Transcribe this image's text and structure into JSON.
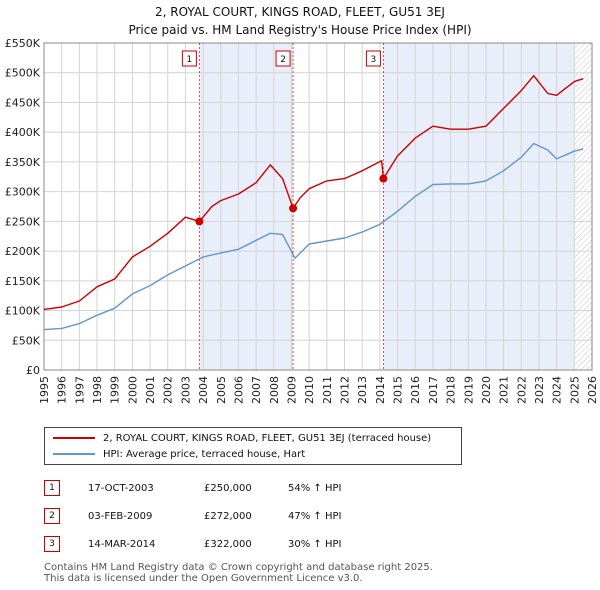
{
  "chart_data": {
    "type": "line",
    "title": "2, ROYAL COURT, KINGS ROAD, FLEET, GU51 3EJ",
    "subtitle": "Price paid vs. HM Land Registry's House Price Index (HPI)",
    "xlim": [
      1995,
      2026
    ],
    "ylim": [
      0,
      550000
    ],
    "y_ticks": [
      0,
      50000,
      100000,
      150000,
      200000,
      250000,
      300000,
      350000,
      400000,
      450000,
      500000,
      550000
    ],
    "y_tick_labels": [
      "£0",
      "£50K",
      "£100K",
      "£150K",
      "£200K",
      "£250K",
      "£300K",
      "£350K",
      "£400K",
      "£450K",
      "£500K",
      "£550K"
    ],
    "x_ticks": [
      "1995",
      "1996",
      "1997",
      "1998",
      "1999",
      "2000",
      "2001",
      "2002",
      "2003",
      "2004",
      "2005",
      "2006",
      "2007",
      "2008",
      "2009",
      "2010",
      "2011",
      "2012",
      "2013",
      "2014",
      "2015",
      "2016",
      "2017",
      "2018",
      "2019",
      "2020",
      "2021",
      "2022",
      "2023",
      "2024",
      "2025",
      "2026"
    ],
    "grid": true,
    "shaded_periods": [
      [
        2003.79,
        2009.09
      ],
      [
        2014.2,
        2025.0
      ]
    ],
    "forecast_start": 2025.0,
    "series": [
      {
        "name": "2, ROYAL COURT, KINGS ROAD, FLEET, GU51 3EJ (terraced house)",
        "color": "#cc0000",
        "x": [
          1995,
          1996,
          1997,
          1998,
          1999,
          2000,
          2001,
          2002,
          2003,
          2003.79,
          2004.5,
          2005,
          2006,
          2007,
          2007.8,
          2008.5,
          2009.09,
          2009.5,
          2010,
          2011,
          2012,
          2013,
          2014.1,
          2014.2,
          2015,
          2016,
          2017,
          2018,
          2019,
          2020,
          2021,
          2022,
          2022.7,
          2023.5,
          2024,
          2025,
          2025.5
        ],
        "values": [
          102000,
          106000,
          116000,
          140000,
          153000,
          190000,
          208000,
          230000,
          257000,
          250000,
          275000,
          285000,
          296000,
          315000,
          345000,
          322000,
          272000,
          290000,
          305000,
          318000,
          322000,
          335000,
          352000,
          322000,
          360000,
          390000,
          410000,
          405000,
          405000,
          410000,
          440000,
          470000,
          495000,
          465000,
          462000,
          485000,
          490000
        ]
      },
      {
        "name": "HPI: Average price, terraced house, Hart",
        "color": "#6495cd",
        "x": [
          1995,
          1996,
          1997,
          1998,
          1999,
          2000,
          2001,
          2002,
          2003,
          2004,
          2005,
          2006,
          2007,
          2007.8,
          2008.5,
          2009.2,
          2010,
          2011,
          2012,
          2013,
          2014,
          2015,
          2016,
          2017,
          2018,
          2019,
          2020,
          2021,
          2022,
          2022.7,
          2023.5,
          2024,
          2025,
          2025.5
        ],
        "values": [
          68000,
          70000,
          78000,
          92000,
          104000,
          128000,
          142000,
          160000,
          175000,
          190000,
          197000,
          203000,
          218000,
          230000,
          228000,
          188000,
          212000,
          217000,
          222000,
          232000,
          245000,
          267000,
          292000,
          312000,
          313000,
          313000,
          318000,
          335000,
          358000,
          381000,
          370000,
          355000,
          368000,
          372000
        ]
      }
    ],
    "sale_markers": [
      {
        "label": "1",
        "x": 2003.79,
        "value": 250000
      },
      {
        "label": "2",
        "x": 2009.09,
        "value": 272000
      },
      {
        "label": "3",
        "x": 2014.2,
        "value": 322000
      }
    ]
  },
  "legend": {
    "property_label": "2, ROYAL COURT, KINGS ROAD, FLEET, GU51 3EJ (terraced house)",
    "hpi_label": "HPI: Average price, terraced house, Hart"
  },
  "sales": [
    {
      "num": "1",
      "date": "17-OCT-2003",
      "price": "£250,000",
      "hpi": "54% ↑ HPI"
    },
    {
      "num": "2",
      "date": "03-FEB-2009",
      "price": "£272,000",
      "hpi": "47% ↑ HPI"
    },
    {
      "num": "3",
      "date": "14-MAR-2014",
      "price": "£322,000",
      "hpi": "30% ↑ HPI"
    }
  ],
  "footer": {
    "line1": "Contains HM Land Registry data © Crown copyright and database right 2025.",
    "line2": "This data is licensed under the Open Government Licence v3.0."
  }
}
